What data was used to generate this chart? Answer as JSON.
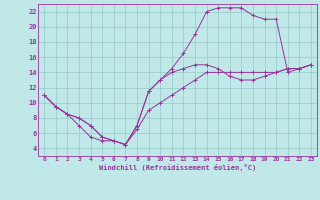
{
  "background_color": "#c0e8e8",
  "grid_color": "#98c8c8",
  "line_color": "#993399",
  "xlabel": "Windchill (Refroidissement éolien,°C)",
  "xlim": [
    -0.5,
    23.5
  ],
  "ylim": [
    3,
    23
  ],
  "xticks": [
    0,
    1,
    2,
    3,
    4,
    5,
    6,
    7,
    8,
    9,
    10,
    11,
    12,
    13,
    14,
    15,
    16,
    17,
    18,
    19,
    20,
    21,
    22,
    23
  ],
  "yticks": [
    4,
    6,
    8,
    10,
    12,
    14,
    16,
    18,
    20,
    22
  ],
  "curve1_x": [
    0,
    1,
    2,
    3,
    4,
    5,
    6,
    7,
    8,
    9,
    10,
    11,
    12,
    13,
    14,
    15,
    16,
    17,
    18,
    19,
    20,
    21,
    22,
    23
  ],
  "curve1_y": [
    11.0,
    9.5,
    8.5,
    7.0,
    5.5,
    5.0,
    5.0,
    4.5,
    6.5,
    9.0,
    10.0,
    11.0,
    12.0,
    13.0,
    14.0,
    14.0,
    14.0,
    14.0,
    14.0,
    14.0,
    14.0,
    14.5,
    14.5,
    15.0
  ],
  "curve2_x": [
    0,
    1,
    2,
    3,
    4,
    5,
    6,
    7,
    8,
    9,
    10,
    11,
    12,
    13,
    14,
    15,
    16,
    17,
    18,
    19,
    20,
    21,
    22,
    23
  ],
  "curve2_y": [
    11.0,
    9.5,
    8.5,
    8.0,
    7.0,
    5.5,
    5.0,
    4.5,
    7.0,
    11.5,
    13.0,
    14.0,
    14.5,
    15.0,
    15.0,
    14.5,
    13.5,
    13.0,
    13.0,
    13.5,
    14.0,
    14.5,
    14.5,
    15.0
  ],
  "curve3_x": [
    0,
    1,
    2,
    3,
    4,
    5,
    6,
    7,
    8,
    9,
    10,
    11,
    12,
    13,
    14,
    15,
    16,
    17,
    18,
    19,
    20,
    21,
    22,
    23
  ],
  "curve3_y": [
    11.0,
    9.5,
    8.5,
    8.0,
    7.0,
    5.5,
    5.0,
    4.5,
    7.0,
    11.5,
    13.0,
    14.5,
    16.5,
    19.0,
    22.0,
    22.5,
    22.5,
    22.5,
    21.5,
    21.0,
    21.0,
    14.0,
    14.5,
    15.0
  ]
}
